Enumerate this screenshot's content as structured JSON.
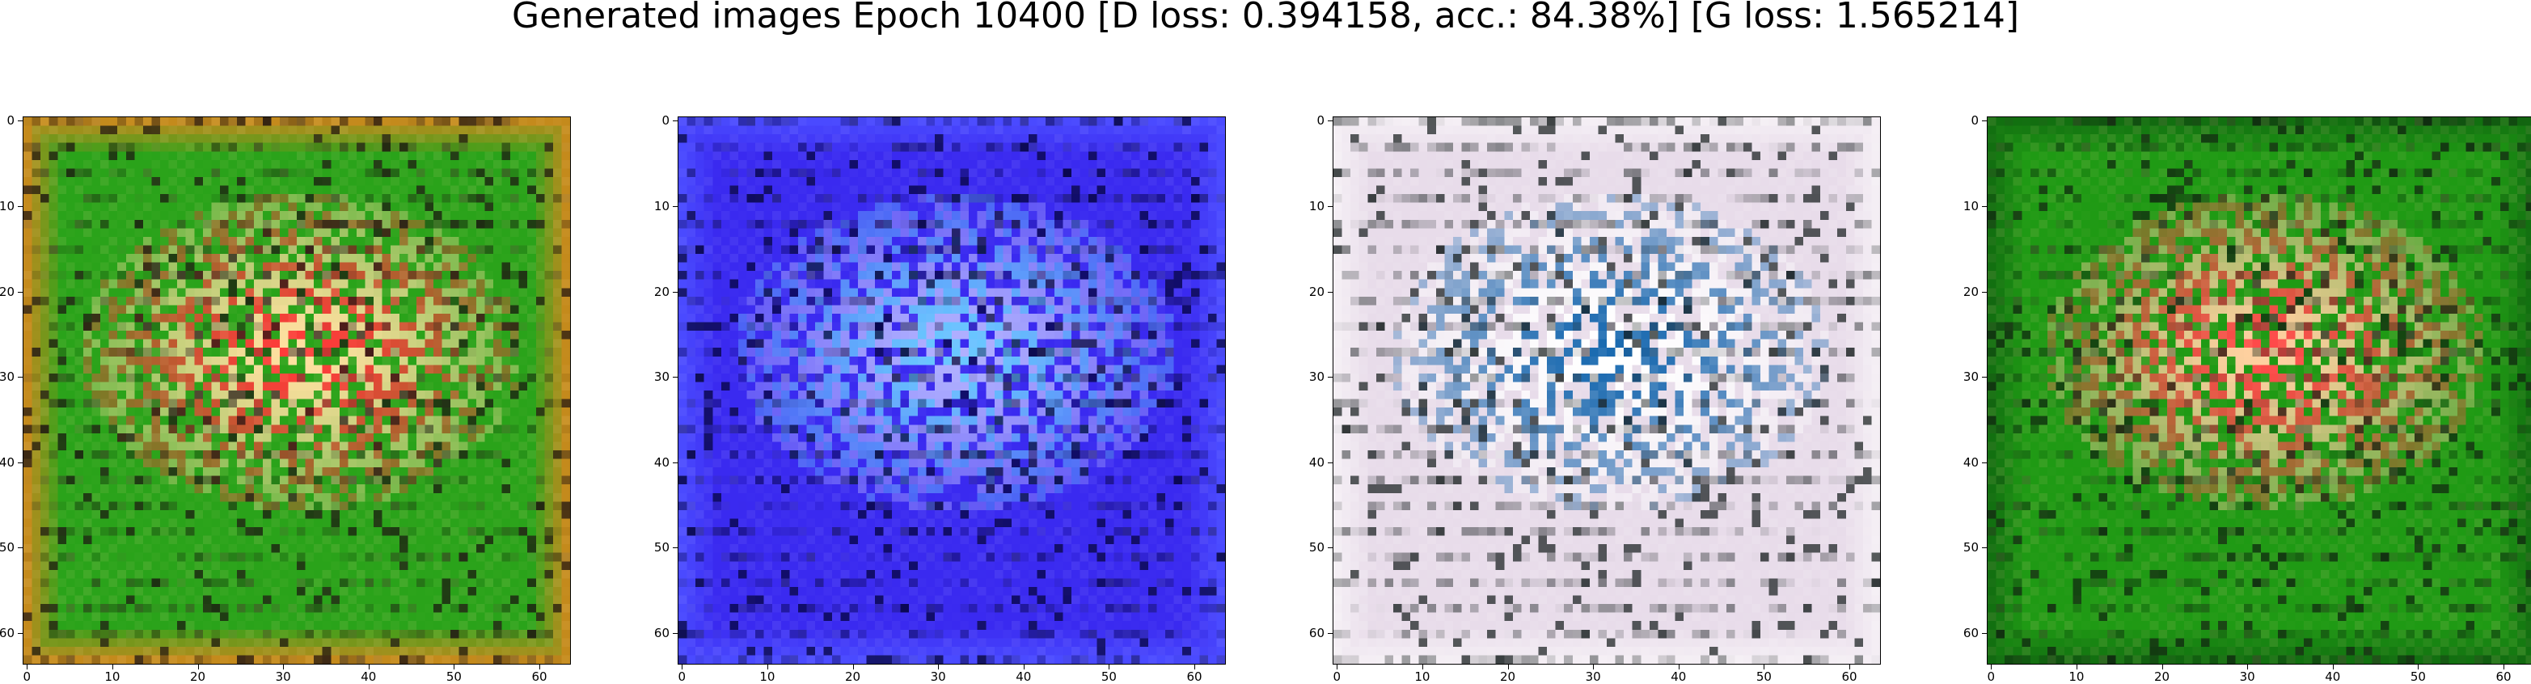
{
  "title": "Generated images Epoch 10400 [D loss: 0.394158, acc.: 84.38%] [G loss: 1.565214]",
  "axes": {
    "x_ticks": [
      "0",
      "10",
      "20",
      "30",
      "40",
      "50",
      "60"
    ],
    "y_ticks": [
      "0",
      "10",
      "20",
      "30",
      "40",
      "50",
      "60"
    ],
    "tick_values": [
      0,
      10,
      20,
      30,
      40,
      50,
      60
    ],
    "range": [
      -0.5,
      63.5
    ]
  },
  "images": [
    {
      "name": "generated-image-1",
      "palette": {
        "base": "#2aa31a",
        "border": "#c48a1c",
        "accent": "#ff3a3a",
        "light": "#ffe0a0",
        "dark": "#1a1010"
      }
    },
    {
      "name": "generated-image-2",
      "palette": {
        "base": "#3a2af0",
        "border": "#4a4aff",
        "accent": "#6ac8ff",
        "light": "#b0b0ff",
        "dark": "#000030"
      }
    },
    {
      "name": "generated-image-3",
      "palette": {
        "base": "#e8dcea",
        "border": "#f4eef4",
        "accent": "#1a6ab0",
        "light": "#ffffff",
        "dark": "#101818"
      }
    },
    {
      "name": "generated-image-4",
      "palette": {
        "base": "#1f9a14",
        "border": "#127010",
        "accent": "#ff4a4a",
        "light": "#ffd0a0",
        "dark": "#102010"
      }
    }
  ]
}
